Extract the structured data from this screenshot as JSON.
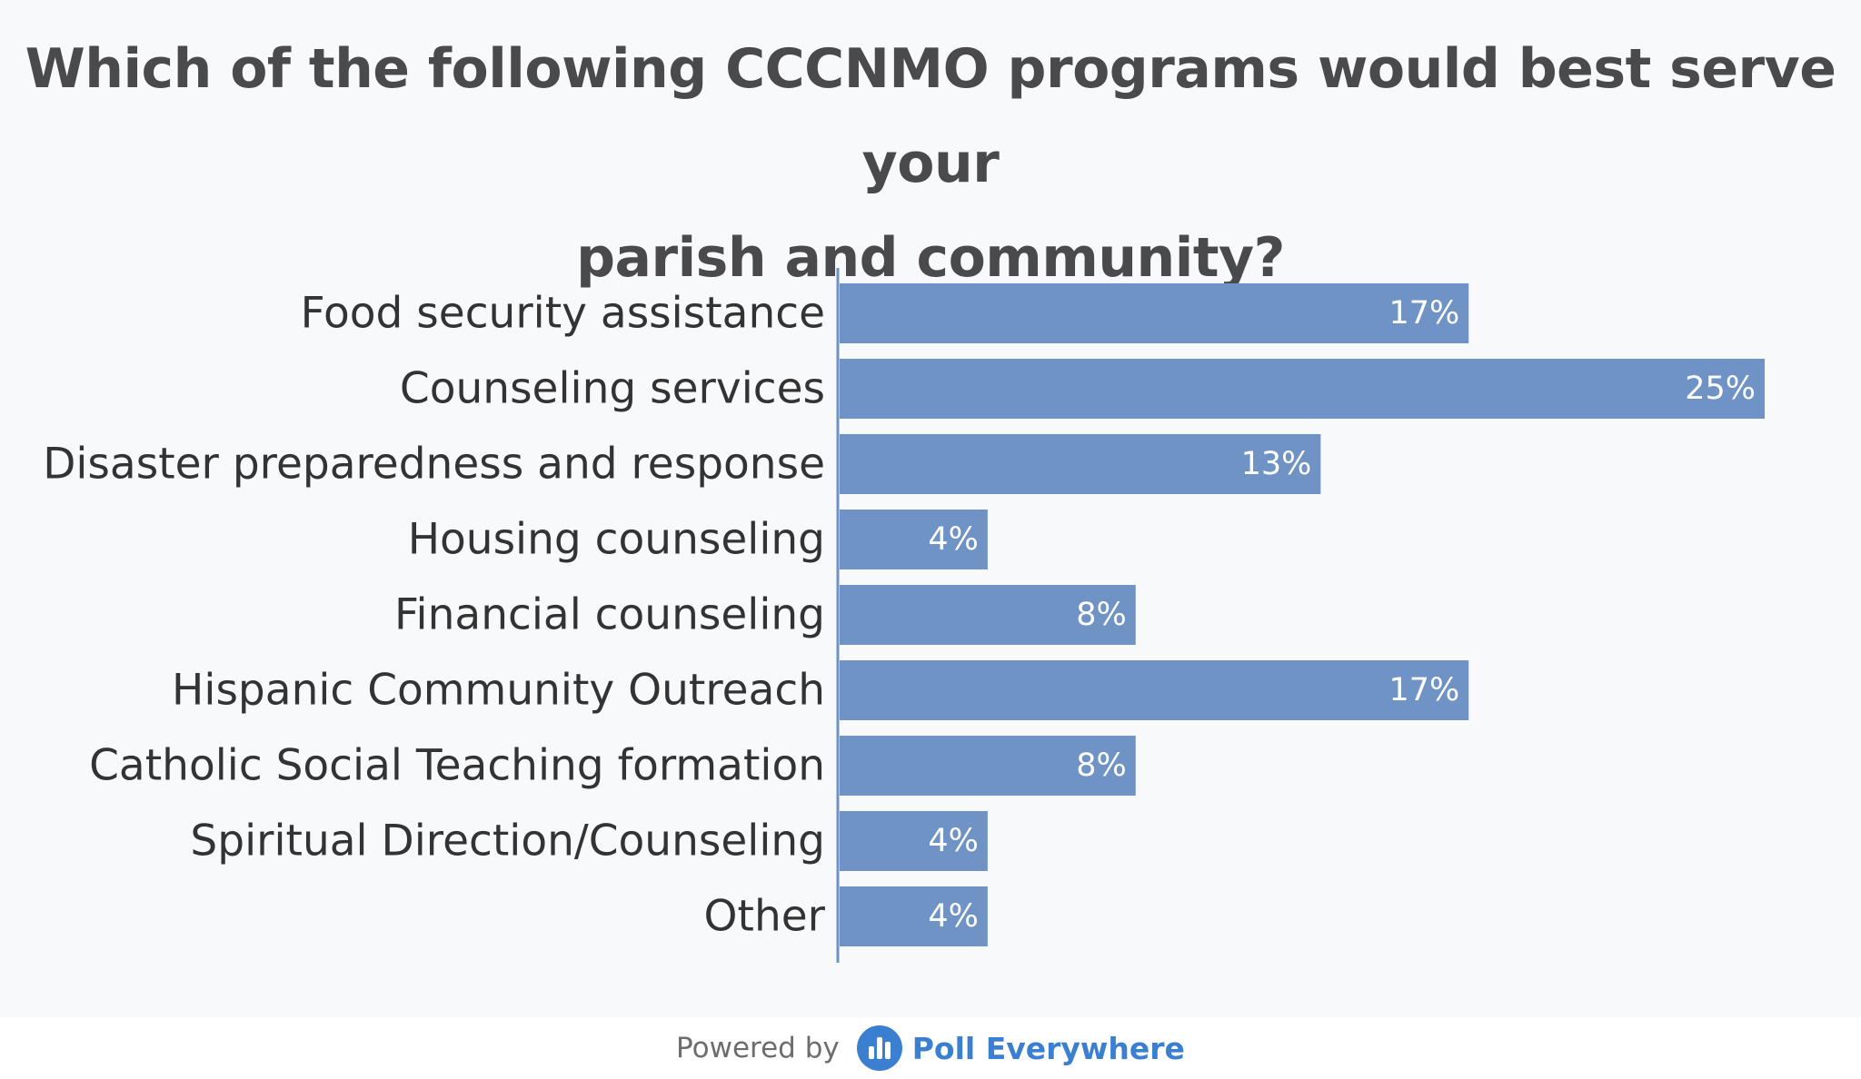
{
  "chart_data": {
    "type": "bar",
    "orientation": "horizontal",
    "title_lines": [
      "Which of the following CCCNMO programs would best serve your",
      "parish and community?"
    ],
    "categories": [
      "Food security assistance",
      "Counseling services",
      "Disaster preparedness and response",
      "Housing counseling",
      "Financial counseling",
      "Hispanic Community Outreach",
      "Catholic Social Teaching formation",
      "Spiritual Direction/Counseling",
      "Other"
    ],
    "values": [
      17,
      25,
      13,
      4,
      8,
      17,
      8,
      4,
      4
    ],
    "value_labels": [
      "17%",
      "25%",
      "13%",
      "4%",
      "8%",
      "17%",
      "8%",
      "4%",
      "4%"
    ],
    "unit": "%",
    "xlim": [
      0,
      25
    ],
    "grid": false,
    "legend": "none",
    "bar_color": "#6e93c4"
  },
  "footer": {
    "powered_by": "Powered by",
    "brand_name": "Poll Everywhere",
    "brand_color": "#3b7fd1",
    "logo_icon": "poll-everywhere-logo-icon"
  }
}
